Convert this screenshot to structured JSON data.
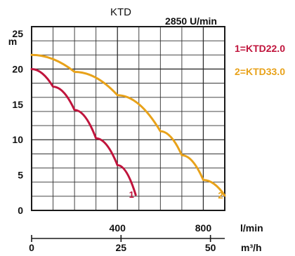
{
  "chart_data": {
    "type": "line",
    "title": "KTD",
    "speed_label": "2850 U/min",
    "y_unit": "m",
    "x_unit_primary": "l/min",
    "x_unit_secondary": "m³/h",
    "xlim_lpm": [
      0,
      900
    ],
    "ylim_m": [
      0,
      26
    ],
    "y_ticks": [
      "0",
      "5",
      "10",
      "15",
      "20",
      "25"
    ],
    "x_ticks_primary": [
      "400",
      "800"
    ],
    "x_ticks_secondary": [
      "0",
      "25",
      "50"
    ],
    "grid": true,
    "legend_position": "top-right",
    "series": [
      {
        "name": "1=KTD22.0",
        "marker": "1",
        "color": "#c0143c",
        "x": [
          0,
          100,
          200,
          300,
          400,
          485
        ],
        "y": [
          20,
          17.5,
          14.2,
          10.2,
          6.4,
          2.2
        ]
      },
      {
        "name": "2=KTD33.0",
        "marker": "2",
        "color": "#e8a21a",
        "x": [
          0,
          200,
          400,
          600,
          700,
          800,
          900
        ],
        "y": [
          22,
          19.6,
          16.3,
          11.2,
          7.8,
          4.3,
          2.1
        ]
      }
    ]
  }
}
